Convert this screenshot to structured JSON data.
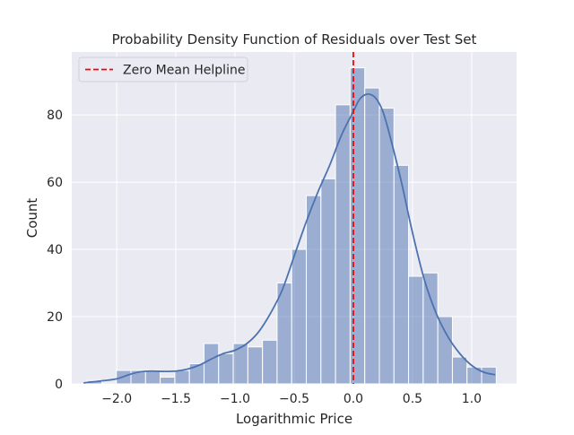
{
  "chart_data": {
    "type": "bar",
    "title": "Probability Density Function of Residuals over Test Set",
    "xlabel": "Logarithmic Price",
    "ylabel": "Count",
    "xlim": [
      -2.38,
      1.38
    ],
    "ylim": [
      0,
      98.7
    ],
    "xticks": [
      -2.0,
      -1.5,
      -1.0,
      -0.5,
      0.0,
      0.5,
      1.0
    ],
    "xtick_labels": [
      "−2.0",
      "−1.5",
      "−1.0",
      "−0.5",
      "0.0",
      "0.5",
      "1.0"
    ],
    "yticks": [
      0,
      20,
      40,
      60,
      80
    ],
    "ytick_labels": [
      "0",
      "20",
      "40",
      "60",
      "80"
    ],
    "grid": true,
    "bins": {
      "start": -2.25,
      "width": 0.1235,
      "counts": [
        1,
        0,
        4,
        4,
        4,
        2,
        4,
        6,
        12,
        9,
        12,
        11,
        13,
        30,
        40,
        56,
        61,
        83,
        94,
        88,
        82,
        65,
        32,
        33,
        20,
        8,
        5,
        5
      ]
    },
    "kde": {
      "x": [
        -2.28,
        -2.15,
        -2.0,
        -1.9,
        -1.8,
        -1.7,
        -1.6,
        -1.5,
        -1.4,
        -1.3,
        -1.2,
        -1.1,
        -1.0,
        -0.9,
        -0.8,
        -0.7,
        -0.6,
        -0.5,
        -0.4,
        -0.3,
        -0.2,
        -0.1,
        0.0,
        0.05,
        0.1,
        0.15,
        0.2,
        0.25,
        0.3,
        0.4,
        0.5,
        0.6,
        0.7,
        0.8,
        0.9,
        1.0,
        1.1,
        1.2
      ],
      "y": [
        0.3,
        0.8,
        1.5,
        2.7,
        3.6,
        3.8,
        3.7,
        3.8,
        4.4,
        5.6,
        7.4,
        9.0,
        10.0,
        12.0,
        15.5,
        21.0,
        28.0,
        38.0,
        48.0,
        57.0,
        65.0,
        74.0,
        81.0,
        84.5,
        86.0,
        86.0,
        84.5,
        81.0,
        75.0,
        61.0,
        45.0,
        31.0,
        21.0,
        14.0,
        9.0,
        5.5,
        3.5,
        2.7
      ]
    },
    "reference_line": {
      "x": 0.0,
      "label": "Zero Mean Helpline",
      "color": "#ff0000"
    },
    "legend": {
      "position": "top-left",
      "entries": [
        "Zero Mean Helpline"
      ]
    },
    "colors": {
      "background": "#eaeaf2",
      "grid": "#ffffff",
      "bar_fill": "#4c72b0",
      "bar_opacity": 0.5,
      "bar_edge": "#ffffff",
      "kde_line": "#4c72b0",
      "legend_bg": "#eaeaf2"
    }
  }
}
